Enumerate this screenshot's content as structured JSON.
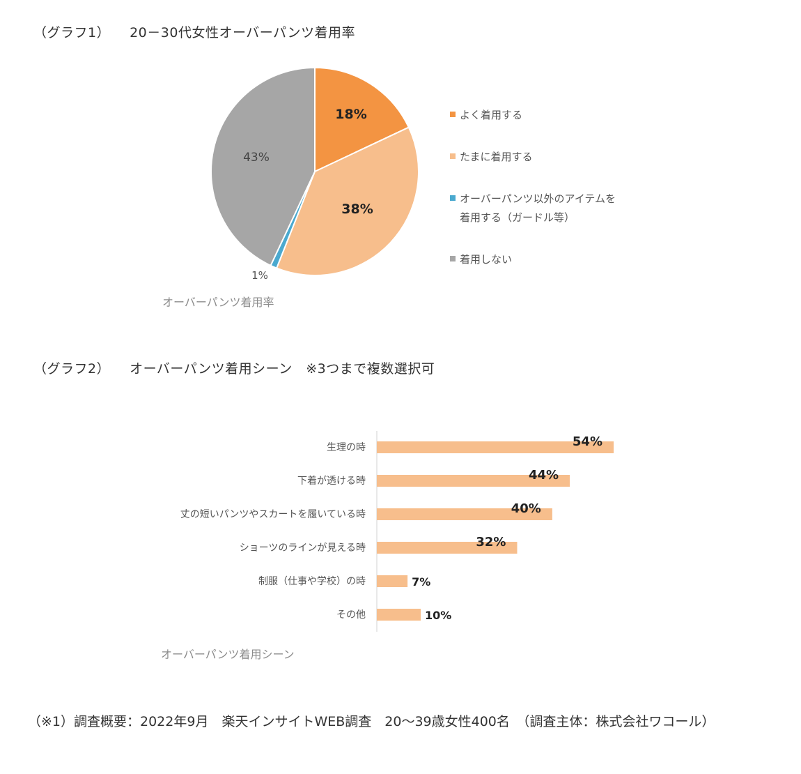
{
  "graph1": {
    "heading_prefix": "（グラフ1）",
    "heading_title": "20－30代女性オーバーパンツ着用率"
  },
  "graph2": {
    "heading_prefix": "（グラフ2）",
    "heading_title": "オーバーパンツ着用シーン　※3つまで複数選択可"
  },
  "footnote": "（※1）調査概要：2022年9月　楽天インサイトWEB調査　20～39歳女性400名　（調査主体：株式会社ワコール）",
  "colors": {
    "orange": "#f39442",
    "light_orange": "#f7be8c",
    "blue": "#4aa9cf",
    "gray": "#a6a6a6",
    "bar": "#f7be8c",
    "axis": "#d0d0d0",
    "muted_text": "#8c8c8c"
  },
  "chart_data": [
    {
      "type": "pie",
      "title": "オーバーパンツ着用率",
      "slices": [
        {
          "label": "よく着用する",
          "value": 18,
          "display": "18%",
          "color": "#f39442"
        },
        {
          "label": "たまに着用する",
          "value": 38,
          "display": "38%",
          "color": "#f7be8c"
        },
        {
          "label_lines": [
            "オーバーパンツ以外のアイテムを",
            "着用する（ガードル等）"
          ],
          "value": 1,
          "display": "1%",
          "color": "#4aa9cf"
        },
        {
          "label": "着用しない",
          "value": 43,
          "display": "43%",
          "color": "#a6a6a6"
        }
      ],
      "legend_position": "right"
    },
    {
      "type": "bar",
      "orientation": "horizontal",
      "title": "オーバーパンツ着用シーン",
      "categories": [
        "生理の時",
        "下着が透ける時",
        "丈の短いパンツやスカートを履いている時",
        "ショーツのラインが見える時",
        "制服（仕事や学校）の時",
        "その他"
      ],
      "values": [
        54,
        44,
        40,
        32,
        7,
        10
      ],
      "labels": [
        "54%",
        "44%",
        "40%",
        "32%",
        "7%",
        "10%"
      ],
      "xlim": [
        0,
        80
      ],
      "grid": false
    }
  ]
}
